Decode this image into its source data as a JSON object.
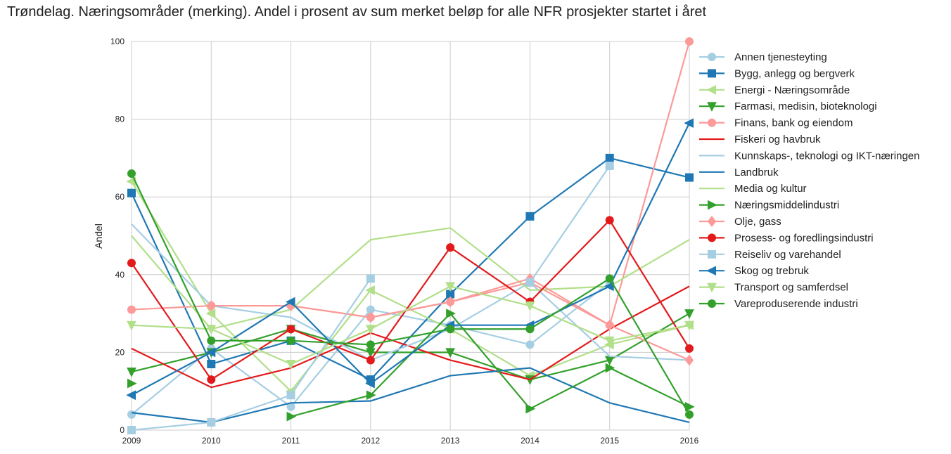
{
  "chart_data": {
    "type": "line",
    "title": "Trøndelag. Næringsområder (merking). Andel i prosent av sum merket beløp for alle NFR prosjekter startet i året",
    "xlabel": "",
    "ylabel": "Andel",
    "x": [
      2009,
      2010,
      2011,
      2012,
      2013,
      2014,
      2015,
      2016
    ],
    "x_tick_labels": [
      "2009",
      "2010",
      "2011",
      "2012",
      "2013",
      "2014",
      "2015",
      "2016"
    ],
    "ylim": [
      0,
      100
    ],
    "y_ticks": [
      0,
      20,
      40,
      60,
      80,
      100
    ],
    "grid": true,
    "legend_position": "right",
    "series": [
      {
        "name": "Annen tjenesteyting",
        "color": "#a6cee3",
        "marker": "circle",
        "values": [
          4,
          21,
          6,
          31,
          27,
          22,
          38,
          null
        ]
      },
      {
        "name": "Bygg, anlegg og bergverk",
        "color": "#1f78b4",
        "marker": "square",
        "values": [
          61,
          17,
          23,
          13,
          35,
          55,
          70,
          65
        ]
      },
      {
        "name": "Energi - Næringsområde",
        "color": "#b2df8a",
        "marker": "triangle-left",
        "values": [
          64,
          30,
          10,
          36,
          26,
          14,
          22,
          27
        ]
      },
      {
        "name": "Farmasi, medisin, bioteknologi",
        "color": "#33a02c",
        "marker": "triangle-down",
        "values": [
          15,
          20,
          26,
          20,
          20,
          13,
          18,
          30
        ]
      },
      {
        "name": "Finans, bank og eiendom",
        "color": "#fb9a99",
        "marker": "circle",
        "values": [
          31,
          32,
          32,
          29,
          33,
          38,
          27,
          100
        ]
      },
      {
        "name": "Fiskeri og havbruk",
        "color": "#e31a1c",
        "marker": "none",
        "values": [
          21,
          11,
          16,
          25,
          18,
          13,
          26,
          37
        ]
      },
      {
        "name": "Kunnskaps-, teknologi og IKT-næringen",
        "color": "#a6cee3",
        "marker": "none",
        "values": [
          53,
          32,
          29,
          18,
          26,
          38,
          19,
          18
        ]
      },
      {
        "name": "Landbruk",
        "color": "#1f78b4",
        "marker": "none",
        "values": [
          4.5,
          2,
          7,
          7.5,
          14,
          16,
          7,
          2
        ]
      },
      {
        "name": "Media og kultur",
        "color": "#b2df8a",
        "marker": "none",
        "values": [
          50,
          26,
          31,
          49,
          52,
          36,
          37,
          49
        ]
      },
      {
        "name": "Næringsmiddelindustri",
        "color": "#33a02c",
        "marker": "triangle-right",
        "values": [
          12,
          null,
          3.5,
          9,
          30,
          5.5,
          16,
          6
        ]
      },
      {
        "name": "Olje, gass",
        "color": "#fb9a99",
        "marker": "diamond",
        "values": [
          null,
          32,
          32,
          29,
          33,
          39,
          27,
          18
        ]
      },
      {
        "name": "Prosess- og foredlingsindustri",
        "color": "#e31a1c",
        "marker": "circle",
        "values": [
          43,
          13,
          26,
          18,
          47,
          33,
          54,
          21
        ]
      },
      {
        "name": "Reiseliv og varehandel",
        "color": "#a6cee3",
        "marker": "square",
        "values": [
          0,
          2,
          9,
          39,
          null,
          38,
          68,
          null
        ]
      },
      {
        "name": "Skog og trebruk",
        "color": "#1f78b4",
        "marker": "triangle-left",
        "values": [
          9,
          20,
          33,
          12,
          27,
          27,
          37,
          79
        ]
      },
      {
        "name": "Transport og samferdsel",
        "color": "#b2df8a",
        "marker": "triangle-down",
        "values": [
          27,
          26,
          17,
          26,
          37,
          32,
          23,
          27
        ]
      },
      {
        "name": "Vareproduserende industri",
        "color": "#33a02c",
        "marker": "circle",
        "values": [
          66,
          23,
          23,
          22,
          26,
          26,
          39,
          4
        ]
      }
    ]
  }
}
